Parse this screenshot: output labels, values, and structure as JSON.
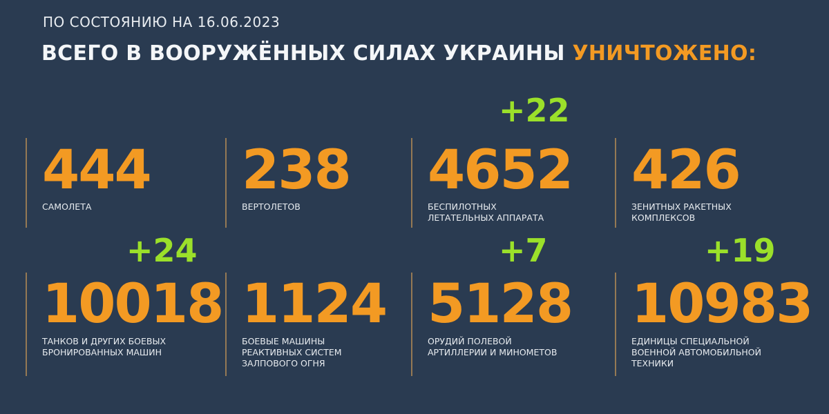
{
  "header": {
    "subtitle": "ПО СОСТОЯНИЮ НА 16.06.2023",
    "title_main": "ВСЕГО В ВООРУЖЁННЫХ СИЛАХ УКРАИНЫ ",
    "title_accent": "УНИЧТОЖЕНО:"
  },
  "colors": {
    "background": "#2a3b51",
    "number": "#f39a23",
    "delta": "#9be02a",
    "text": "#e8ecf0"
  },
  "stats": [
    {
      "value": "444",
      "label": "САМОЛЕТА",
      "delta": ""
    },
    {
      "value": "238",
      "label": "ВЕРТОЛЕТОВ",
      "delta": ""
    },
    {
      "value": "4652",
      "label": "БЕСПИЛОТНЫХ\nЛЕТАТЕЛЬНЫХ АППАРАТА",
      "delta": "+22"
    },
    {
      "value": "426",
      "label": "ЗЕНИТНЫХ РАКЕТНЫХ\nКОМПЛЕКСОВ",
      "delta": ""
    },
    {
      "value": "10018",
      "label": "ТАНКОВ И ДРУГИХ БОЕВЫХ\nБРОНИРОВАННЫХ МАШИН",
      "delta": "+24"
    },
    {
      "value": "1124",
      "label": "БОЕВЫЕ МАШИНЫ\nРЕАКТИВНЫХ СИСТЕМ\nЗАЛПОВОГО ОГНЯ",
      "delta": ""
    },
    {
      "value": "5128",
      "label": "ОРУДИЙ ПОЛЕВОЙ\nАРТИЛЛЕРИИ И МИНОМЕТОВ",
      "delta": "+7"
    },
    {
      "value": "10983",
      "label": "ЕДИНИЦЫ СПЕЦИАЛЬНОЙ\nВОЕННОЙ АВТОМОБИЛЬНОЙ\nТЕХНИКИ",
      "delta": "+19"
    }
  ]
}
